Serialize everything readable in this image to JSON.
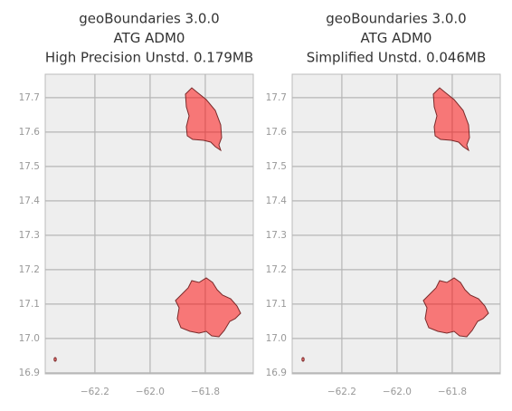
{
  "chart_data": [
    {
      "type": "map",
      "title": [
        "geoBoundaries 3.0.0",
        "ATG ADM0",
        "High Precision Unstd. 0.179MB"
      ],
      "xlim": [
        -62.38,
        -61.626
      ],
      "ylim": [
        16.897,
        17.768
      ],
      "xticks": [
        {
          "value": -62.2,
          "label": "−62.2"
        },
        {
          "value": -62.0,
          "label": "−62.0"
        },
        {
          "value": -61.8,
          "label": "−61.8"
        }
      ],
      "yticks": [
        {
          "value": 16.9,
          "label": "16.9"
        },
        {
          "value": 17.0,
          "label": "17.0"
        },
        17.1,
        17.2,
        17.3,
        17.4,
        17.5,
        17.6,
        17.7
      ],
      "grid": true,
      "color": "#ff0000"
    },
    {
      "type": "map",
      "title": [
        "geoBoundaries 3.0.0",
        "ATG ADM0",
        "Simplified Unstd. 0.046MB"
      ],
      "xlim": [
        -62.38,
        -61.626
      ],
      "ylim": [
        16.897,
        17.768
      ],
      "xticks": [
        {
          "value": -62.2,
          "label": "−62.2"
        },
        {
          "value": -62.0,
          "label": "−62.0"
        },
        {
          "value": -61.8,
          "label": "−61.8"
        }
      ],
      "yticks": [
        {
          "value": 16.9,
          "label": "16.9"
        },
        {
          "value": 17.0,
          "label": "17.0"
        },
        17.1,
        17.2,
        17.3,
        17.4,
        17.5,
        17.6,
        17.7
      ],
      "grid": true,
      "color": "#ff0000"
    }
  ]
}
